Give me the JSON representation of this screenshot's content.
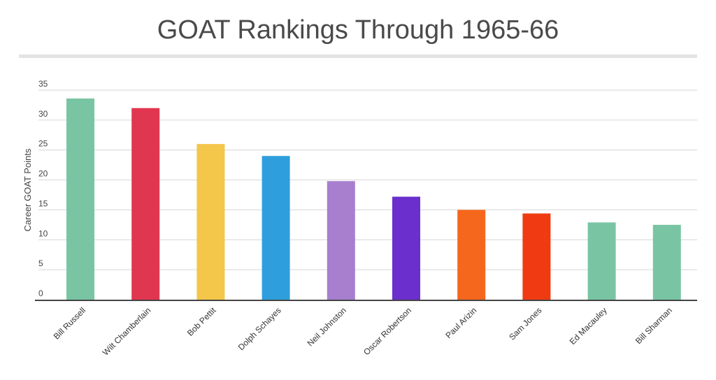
{
  "chart_data": {
    "type": "bar",
    "title": "GOAT Rankings Through 1965-66",
    "ylabel": "Career GOAT Points",
    "xlabel": "",
    "ylim": [
      0,
      35
    ],
    "yticks": [
      0,
      5,
      10,
      15,
      20,
      25,
      30,
      35
    ],
    "grid": true,
    "categories": [
      "Bill Russell",
      "Wilt Chamberlain",
      "Bob Pettit",
      "Dolph Schayes",
      "Neil Johnston",
      "Oscar Robertson",
      "Paul Arizin",
      "Sam Jones",
      "Ed Macauley",
      "Bill Sharman"
    ],
    "values": [
      33.6,
      32.0,
      26.0,
      24.0,
      19.8,
      17.2,
      15.0,
      14.4,
      12.9,
      12.5
    ],
    "colors": [
      "#79c5a3",
      "#e0364f",
      "#f4c64a",
      "#2e9fdc",
      "#a77fce",
      "#6a2fcc",
      "#f5671d",
      "#f03b12",
      "#79c5a3",
      "#79c5a3"
    ]
  }
}
